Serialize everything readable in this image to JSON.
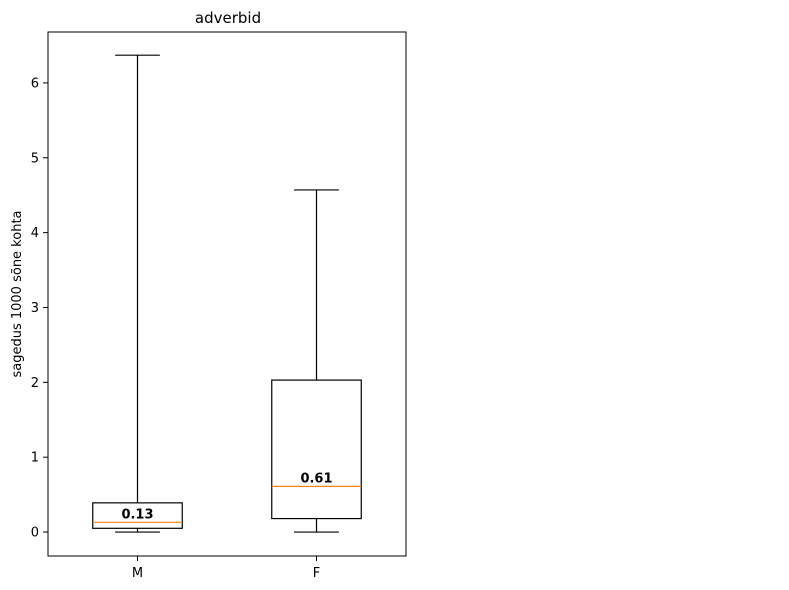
{
  "chart_data": {
    "type": "boxplot",
    "title": "adverbid",
    "xlabel": "",
    "ylabel": "sagedus 1000 sõne kohta",
    "ylim": [
      -0.32,
      6.68
    ],
    "yticks": [
      0,
      1,
      2,
      3,
      4,
      5,
      6
    ],
    "ytick_labels": [
      "0",
      "1",
      "2",
      "3",
      "4",
      "5",
      "6"
    ],
    "grid": false,
    "categories": [
      "M",
      "F"
    ],
    "boxes": [
      {
        "category": "M",
        "whisker_low": 0.0,
        "q1": 0.05,
        "median": 0.13,
        "q3": 0.39,
        "whisker_high": 6.37,
        "median_label": "0.13"
      },
      {
        "category": "F",
        "whisker_low": 0.0,
        "q1": 0.18,
        "median": 0.61,
        "q3": 2.03,
        "whisker_high": 4.57,
        "median_label": "0.61"
      }
    ],
    "colors": {
      "box": "#000000",
      "median": "#ff7f0e"
    }
  }
}
